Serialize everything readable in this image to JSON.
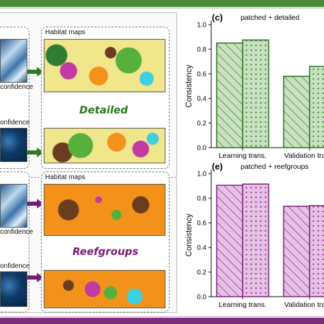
{
  "left": {
    "top_group": {
      "confidence_label_1": "confidence",
      "confidence_label_2": "onfidence",
      "maps_title": "Habitat maps",
      "mode_label": "Detailed"
    },
    "bottom_group": {
      "confidence_label_1": "confidence",
      "confidence_label_2": "onfidence",
      "maps_title": "Habitat maps",
      "mode_label": "Reefgroups"
    }
  },
  "colors": {
    "detailed": "#2a7a1f",
    "reefgroups": "#7a1a78",
    "green_fill": "#c9e1c1",
    "green_line": "#2f7a26",
    "purple_fill": "#e7c2e6",
    "purple_line": "#7d2a80",
    "map_orange": "#f2921a",
    "map_yellow": "#f0e68c",
    "map_green": "#57b03b",
    "map_magenta": "#c23aa2",
    "map_cyan": "#3fd0e0",
    "satellite_dark": "#0e3a66",
    "satellite_light": "#7fb3d9"
  },
  "chart_data": [
    {
      "type": "bar",
      "panel_label": "(c)",
      "title": "patched + detailed",
      "ylabel": "Consistency",
      "ylim": [
        0,
        1.0
      ],
      "yticks": [
        "0.0",
        "0.2",
        "0.4",
        "0.6",
        "0.8",
        "1.0"
      ],
      "categories": [
        "Learning trans.",
        "Validation trans."
      ],
      "series": [
        {
          "pattern": "hatch",
          "values": [
            0.85,
            0.58
          ]
        },
        {
          "pattern": "dots",
          "values": [
            0.875,
            0.66
          ]
        }
      ]
    },
    {
      "type": "bar",
      "panel_label": "(e)",
      "title": "patched + reefgroups",
      "ylabel": "Consistency",
      "ylim": [
        0,
        1.0
      ],
      "yticks": [
        "0.0",
        "0.2",
        "0.4",
        "0.6",
        "0.8",
        "1.0"
      ],
      "categories": [
        "Learning trans.",
        "Validation trans."
      ],
      "series": [
        {
          "pattern": "hatch",
          "values": [
            0.905,
            0.735
          ]
        },
        {
          "pattern": "dots",
          "values": [
            0.915,
            0.74
          ]
        }
      ]
    }
  ]
}
